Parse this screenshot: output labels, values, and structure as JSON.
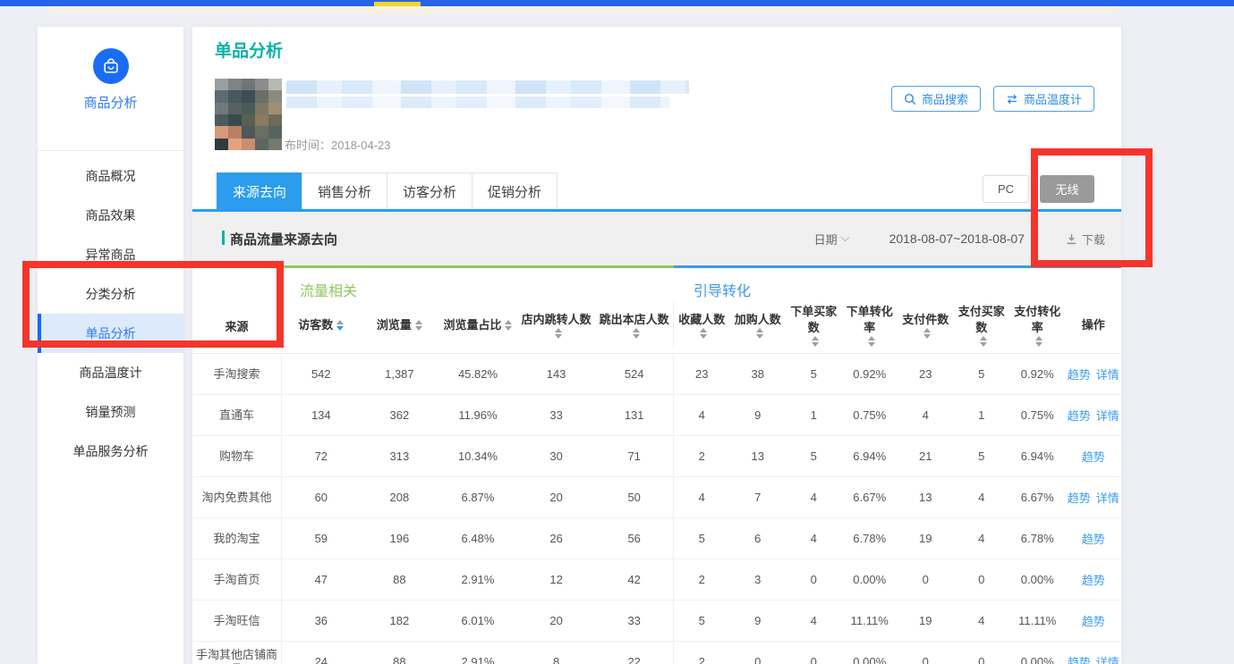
{
  "sidebar": {
    "app_title": "商品分析",
    "items": [
      {
        "label": "商品概况",
        "active": false
      },
      {
        "label": "商品效果",
        "active": false
      },
      {
        "label": "异常商品",
        "active": false
      },
      {
        "label": "分类分析",
        "active": false
      },
      {
        "label": "单品分析",
        "active": true
      },
      {
        "label": "商品温度计",
        "active": false
      },
      {
        "label": "销量预测",
        "active": false
      },
      {
        "label": "单品服务分析",
        "active": false
      }
    ]
  },
  "header": {
    "page_title": "单品分析",
    "publish_time": "布时间：2018-04-23",
    "search_button": "商品搜索",
    "thermometer_button": "商品温度计"
  },
  "tabs": [
    {
      "label": "来源去向",
      "active": true
    },
    {
      "label": "销售分析",
      "active": false
    },
    {
      "label": "访客分析",
      "active": false
    },
    {
      "label": "促销分析",
      "active": false
    }
  ],
  "device_toggle": {
    "pc_label": "PC",
    "wireless_label": "无线",
    "selected": "无线"
  },
  "section": {
    "title": "商品流量来源去向",
    "date_label": "日期",
    "date_range": "2018-08-07~2018-08-07",
    "download_label": "下载"
  },
  "table": {
    "source_header": "来源",
    "group1_label": "流量相关",
    "group2_label": "引导转化",
    "columns": [
      {
        "label": "访客数",
        "sort": "desc"
      },
      {
        "label": "浏览量",
        "sort": "none"
      },
      {
        "label": "浏览量占比",
        "sort": "none"
      },
      {
        "label": "店内跳转人数",
        "sort": "none"
      },
      {
        "label": "跳出本店人数",
        "sort": "none"
      },
      {
        "label": "收藏人数",
        "sort": "none"
      },
      {
        "label": "加购人数",
        "sort": "none"
      },
      {
        "label": "下单买家数",
        "sort": "none"
      },
      {
        "label": "下单转化率",
        "sort": "none"
      },
      {
        "label": "支付件数",
        "sort": "none"
      },
      {
        "label": "支付买家数",
        "sort": "none"
      },
      {
        "label": "支付转化率",
        "sort": "none"
      },
      {
        "label": "操作",
        "sort": null
      }
    ],
    "rows": [
      {
        "source": "手淘搜索",
        "values": [
          "542",
          "1,387",
          "45.82%",
          "143",
          "524",
          "23",
          "38",
          "5",
          "0.92%",
          "23",
          "5",
          "0.92%"
        ],
        "actions": [
          "趋势",
          "详情"
        ]
      },
      {
        "source": "直通车",
        "values": [
          "134",
          "362",
          "11.96%",
          "33",
          "131",
          "4",
          "9",
          "1",
          "0.75%",
          "4",
          "1",
          "0.75%"
        ],
        "actions": [
          "趋势",
          "详情"
        ]
      },
      {
        "source": "购物车",
        "values": [
          "72",
          "313",
          "10.34%",
          "30",
          "71",
          "2",
          "13",
          "5",
          "6.94%",
          "21",
          "5",
          "6.94%"
        ],
        "actions": [
          "趋势"
        ]
      },
      {
        "source": "淘内免费其他",
        "values": [
          "60",
          "208",
          "6.87%",
          "20",
          "50",
          "4",
          "7",
          "4",
          "6.67%",
          "13",
          "4",
          "6.67%"
        ],
        "actions": [
          "趋势",
          "详情"
        ]
      },
      {
        "source": "我的淘宝",
        "values": [
          "59",
          "196",
          "6.48%",
          "26",
          "56",
          "5",
          "6",
          "4",
          "6.78%",
          "19",
          "4",
          "6.78%"
        ],
        "actions": [
          "趋势"
        ]
      },
      {
        "source": "手淘首页",
        "values": [
          "47",
          "88",
          "2.91%",
          "12",
          "42",
          "2",
          "3",
          "0",
          "0.00%",
          "0",
          "0",
          "0.00%"
        ],
        "actions": [
          "趋势"
        ]
      },
      {
        "source": "手淘旺信",
        "values": [
          "36",
          "182",
          "6.01%",
          "20",
          "33",
          "5",
          "9",
          "4",
          "11.11%",
          "19",
          "4",
          "11.11%"
        ],
        "actions": [
          "趋势"
        ]
      },
      {
        "source": "手淘其他店铺商品",
        "values": [
          "24",
          "88",
          "2.91%",
          "8",
          "22",
          "2",
          "0",
          "0",
          "0.00%",
          "0",
          "0",
          "0.00%"
        ],
        "actions": [
          "趋势",
          "详情"
        ]
      }
    ]
  },
  "colors": {
    "accent_teal": "#0ab3a3",
    "tab_blue": "#2b9cee",
    "link_blue": "#3b9cf0",
    "group1_green": "#8fc961",
    "group2_blue": "#3d9aea",
    "annotation_red": "#f5352c",
    "topbar_blue": "#2563e8",
    "topbar_yellow": "#f2d624"
  },
  "mosaic": [
    "#9aa0a0",
    "#7d8486",
    "#6e7678",
    "#8a8d89",
    "#b7b9b6",
    "#5e6b70",
    "#47585f",
    "#3e4e54",
    "#6b6f66",
    "#8c8a7d",
    "#6f7a76",
    "#55625f",
    "#4a5a58",
    "#7d7763",
    "#a08f72",
    "#4d5a5b",
    "#394a4d",
    "#5a5f55",
    "#8a7a5e",
    "#6e6a58",
    "#d79a78",
    "#b97f66",
    "#4e575a",
    "#6a6f62",
    "#57635f",
    "#2f3b3e",
    "#e0a37e",
    "#c98e6f",
    "#5d6660",
    "#757a6d"
  ]
}
